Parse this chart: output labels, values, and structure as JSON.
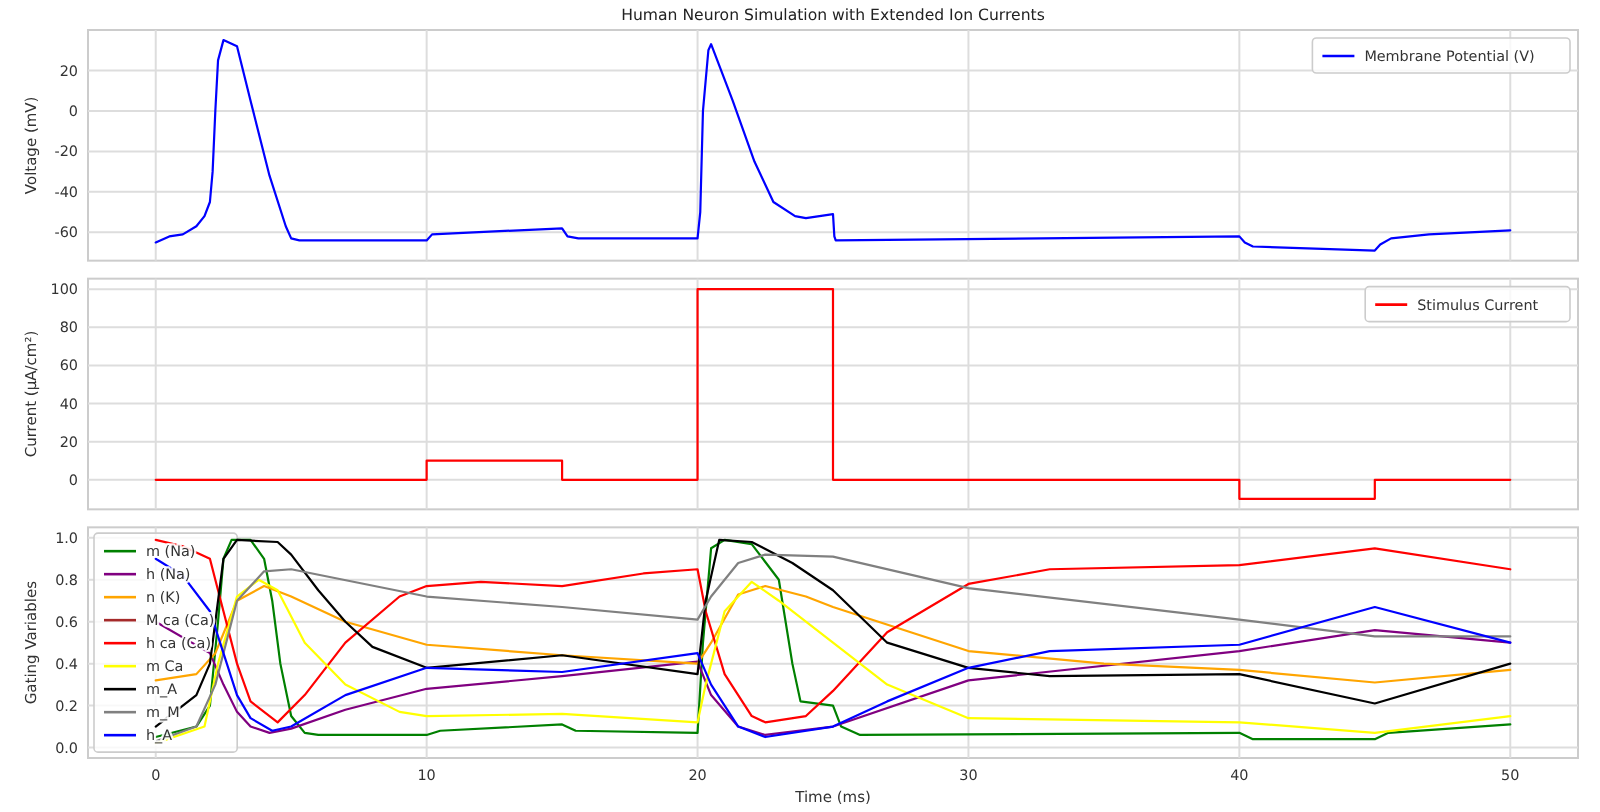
{
  "chart_data": [
    {
      "type": "line",
      "title": "Human Neuron Simulation with Extended Ion Currents",
      "ylabel": "Voltage (mV)",
      "xlim": [
        -2.5,
        52.5
      ],
      "xticks": [
        0,
        10,
        20,
        30,
        40,
        50
      ],
      "ylim": [
        -74,
        40
      ],
      "yticks": [
        -60,
        -40,
        -20,
        0,
        20
      ],
      "tick_labels": "y",
      "grid": true,
      "legend": "top right",
      "series": [
        {
          "name": "Membrane Potential (V)",
          "color": "#0000ff",
          "x": [
            0,
            0.5,
            1,
            1.5,
            1.8,
            2.0,
            2.1,
            2.2,
            2.3,
            2.5,
            3,
            3.5,
            4.2,
            4.8,
            5.0,
            5.3,
            10,
            10.2,
            15,
            15.2,
            15.6,
            20,
            20.1,
            20.2,
            20.4,
            20.5,
            21.3,
            22.1,
            22.8,
            23.6,
            24,
            25,
            25.05,
            25.1,
            40,
            40.2,
            40.5,
            45,
            45.2,
            45.6,
            47,
            50
          ],
          "values": [
            -65,
            -62,
            -61,
            -57,
            -52,
            -45,
            -30,
            0,
            25,
            35,
            32,
            5,
            -32,
            -57,
            -63,
            -64,
            -64,
            -61,
            -58,
            -62,
            -63,
            -63,
            -50,
            0,
            30,
            33,
            5,
            -25,
            -45,
            -52,
            -53,
            -51,
            -62,
            -64,
            -62,
            -65,
            -67,
            -69,
            -66,
            -63,
            -61,
            -59
          ]
        }
      ]
    },
    {
      "type": "step",
      "ylabel": "Current (μA/cm²)",
      "xlim": [
        -2.5,
        52.5
      ],
      "xticks": [
        0,
        10,
        20,
        30,
        40,
        50
      ],
      "ylim": [
        -15.5,
        105.5
      ],
      "yticks": [
        0,
        20,
        40,
        60,
        80,
        100
      ],
      "tick_labels": "y",
      "grid": true,
      "legend": "top right",
      "series": [
        {
          "name": "Stimulus Current",
          "color": "#ff0000",
          "x": [
            0,
            10,
            15,
            20,
            25,
            40,
            45,
            50
          ],
          "values": [
            0,
            10,
            0,
            100,
            0,
            -10,
            0,
            0
          ]
        }
      ]
    },
    {
      "type": "line",
      "ylabel": "Gating Variables",
      "xlabel": "Time (ms)",
      "xlim": [
        -2.5,
        52.5
      ],
      "xticks": [
        0,
        10,
        20,
        30,
        40,
        50
      ],
      "ylim": [
        -0.05,
        1.05
      ],
      "yticks": [
        {
          "value": 0,
          "label": "0.0"
        },
        0.2,
        0.4,
        0.6,
        0.8,
        {
          "value": 1,
          "label": "1.0"
        }
      ],
      "grid": true,
      "legend": "left",
      "series": [
        {
          "name": "m (Na)",
          "color": "#008000",
          "x": [
            0,
            1.5,
            2,
            2.3,
            2.5,
            2.8,
            3.5,
            4,
            4.3,
            4.6,
            5,
            5.5,
            6,
            10,
            10.5,
            15,
            15.5,
            20,
            20.2,
            20.5,
            21,
            22,
            23,
            23.5,
            23.8,
            25,
            25.3,
            26,
            40,
            40.5,
            45,
            45.5,
            50
          ],
          "values": [
            0.05,
            0.1,
            0.2,
            0.6,
            0.9,
            0.99,
            0.99,
            0.9,
            0.7,
            0.4,
            0.15,
            0.07,
            0.06,
            0.06,
            0.08,
            0.11,
            0.08,
            0.07,
            0.5,
            0.95,
            0.99,
            0.97,
            0.8,
            0.4,
            0.22,
            0.2,
            0.1,
            0.06,
            0.07,
            0.04,
            0.04,
            0.07,
            0.11
          ]
        },
        {
          "name": "h (Na)",
          "color": "#800080",
          "x": [
            0,
            2,
            2.5,
            3,
            3.5,
            4.2,
            5,
            7,
            10,
            15,
            20,
            20.5,
            21.5,
            22.5,
            25,
            30,
            40,
            45,
            50
          ],
          "values": [
            0.6,
            0.45,
            0.3,
            0.17,
            0.1,
            0.07,
            0.09,
            0.18,
            0.28,
            0.34,
            0.41,
            0.25,
            0.1,
            0.06,
            0.1,
            0.32,
            0.46,
            0.56,
            0.5
          ]
        },
        {
          "name": "n (K)",
          "color": "#ffa500",
          "x": [
            0,
            1.5,
            2.2,
            3,
            4,
            5,
            7,
            10,
            15,
            20,
            20.5,
            21.5,
            22.5,
            24,
            25,
            30,
            35,
            40,
            45,
            50
          ],
          "values": [
            0.32,
            0.35,
            0.45,
            0.7,
            0.77,
            0.72,
            0.6,
            0.49,
            0.44,
            0.4,
            0.5,
            0.73,
            0.77,
            0.72,
            0.67,
            0.46,
            0.4,
            0.37,
            0.31,
            0.37
          ]
        },
        {
          "name": "M ca (Ca)",
          "color": "#a52a2a"
        },
        {
          "name": "h ca (Ca)",
          "color": "#ff0000",
          "x": [
            0,
            1,
            2,
            2.5,
            3,
            3.5,
            4.5,
            5.5,
            7,
            9,
            10,
            12,
            15,
            18,
            20,
            20.3,
            21,
            22,
            22.5,
            24,
            25,
            27,
            30,
            33,
            40,
            45,
            50
          ],
          "values": [
            0.99,
            0.96,
            0.9,
            0.65,
            0.4,
            0.22,
            0.12,
            0.25,
            0.5,
            0.72,
            0.77,
            0.79,
            0.77,
            0.83,
            0.85,
            0.65,
            0.35,
            0.15,
            0.12,
            0.15,
            0.27,
            0.55,
            0.78,
            0.85,
            0.87,
            0.95,
            0.85
          ]
        },
        {
          "name": "m Ca",
          "color": "#ffff00",
          "x": [
            0,
            1.8,
            2.3,
            3,
            3.8,
            4.5,
            5.5,
            7,
            9,
            10,
            15,
            20,
            20.3,
            21,
            22,
            23,
            25,
            27,
            30,
            40,
            45,
            50
          ],
          "values": [
            0.02,
            0.1,
            0.4,
            0.72,
            0.8,
            0.75,
            0.5,
            0.3,
            0.17,
            0.15,
            0.16,
            0.12,
            0.3,
            0.65,
            0.79,
            0.7,
            0.5,
            0.3,
            0.14,
            0.12,
            0.07,
            0.15
          ]
        },
        {
          "name": "m_A",
          "color": "#000000",
          "x": [
            0,
            1.5,
            2,
            2.5,
            3,
            4.5,
            5,
            6,
            7,
            8,
            10,
            15,
            20,
            20.3,
            20.8,
            22,
            23.5,
            25,
            27,
            30,
            33,
            40,
            45,
            50
          ],
          "values": [
            0.1,
            0.25,
            0.4,
            0.9,
            0.99,
            0.98,
            0.92,
            0.75,
            0.6,
            0.48,
            0.38,
            0.44,
            0.35,
            0.7,
            0.99,
            0.98,
            0.88,
            0.75,
            0.5,
            0.38,
            0.34,
            0.35,
            0.21,
            0.4
          ]
        },
        {
          "name": "m_M",
          "color": "#808080",
          "x": [
            0,
            1.5,
            2.2,
            3,
            4,
            5,
            10,
            15,
            20,
            20.5,
            21.5,
            22.5,
            25,
            30,
            40,
            45,
            50
          ],
          "values": [
            0.03,
            0.1,
            0.3,
            0.7,
            0.84,
            0.85,
            0.72,
            0.67,
            0.61,
            0.72,
            0.88,
            0.92,
            0.91,
            0.76,
            0.61,
            0.53,
            0.53
          ]
        },
        {
          "name": "h_A",
          "color": "#0000ff",
          "x": [
            0,
            1,
            2,
            2.5,
            3,
            3.5,
            4.3,
            5,
            7,
            10,
            15,
            20,
            20.5,
            21.5,
            22.5,
            25,
            27,
            30,
            33,
            40,
            45,
            50
          ],
          "values": [
            0.9,
            0.82,
            0.65,
            0.45,
            0.25,
            0.14,
            0.08,
            0.1,
            0.25,
            0.38,
            0.36,
            0.45,
            0.3,
            0.1,
            0.05,
            0.1,
            0.22,
            0.38,
            0.46,
            0.49,
            0.67,
            0.5
          ]
        }
      ]
    }
  ]
}
